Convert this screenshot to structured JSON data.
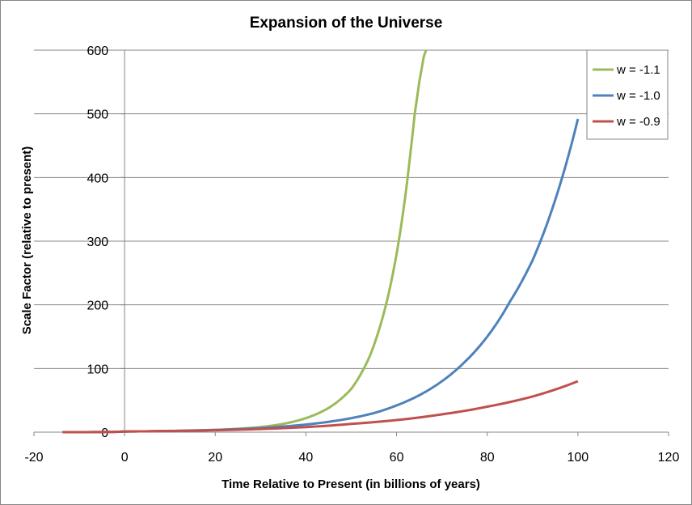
{
  "chart_data": {
    "type": "line",
    "title": "Expansion of the Universe",
    "xlabel": "Time Relative to Present (in billions of years)",
    "ylabel": "Scale Factor (relative to present)",
    "xlim": [
      -20,
      120
    ],
    "ylim": [
      0,
      600
    ],
    "xticks": [
      "-20",
      "0",
      "20",
      "40",
      "60",
      "80",
      "100",
      "120"
    ],
    "yticks": [
      "0",
      "100",
      "200",
      "300",
      "400",
      "500",
      "600"
    ],
    "grid": "horizontal",
    "legend": "top-right",
    "series": [
      {
        "name": "w = -1.1",
        "color": "#9bbb59",
        "x": [
          -13.7,
          0,
          10,
          20,
          30,
          35,
          40,
          45,
          50,
          52,
          54,
          56,
          58,
          60,
          62,
          63,
          64,
          65,
          66,
          66.5
        ],
        "y": [
          0,
          1,
          2,
          3.5,
          8,
          13,
          22,
          38,
          68,
          90,
          118,
          158,
          210,
          280,
          375,
          435,
          500,
          550,
          590,
          600
        ]
      },
      {
        "name": "w = -1.0",
        "color": "#4f81bd",
        "x": [
          -13.7,
          0,
          10,
          20,
          30,
          40,
          50,
          55,
          60,
          65,
          70,
          75,
          80,
          85,
          90,
          95,
          100
        ],
        "y": [
          0,
          1,
          1.8,
          3.5,
          6.5,
          12,
          22,
          30,
          42,
          58,
          80,
          110,
          150,
          205,
          270,
          365,
          492
        ]
      },
      {
        "name": "w = -0.9",
        "color": "#c0504d",
        "x": [
          -13.7,
          0,
          10,
          20,
          30,
          40,
          50,
          60,
          70,
          80,
          90,
          100
        ],
        "y": [
          0,
          1,
          1.8,
          3,
          5,
          8,
          13,
          19,
          28,
          40,
          56,
          80
        ]
      }
    ]
  }
}
